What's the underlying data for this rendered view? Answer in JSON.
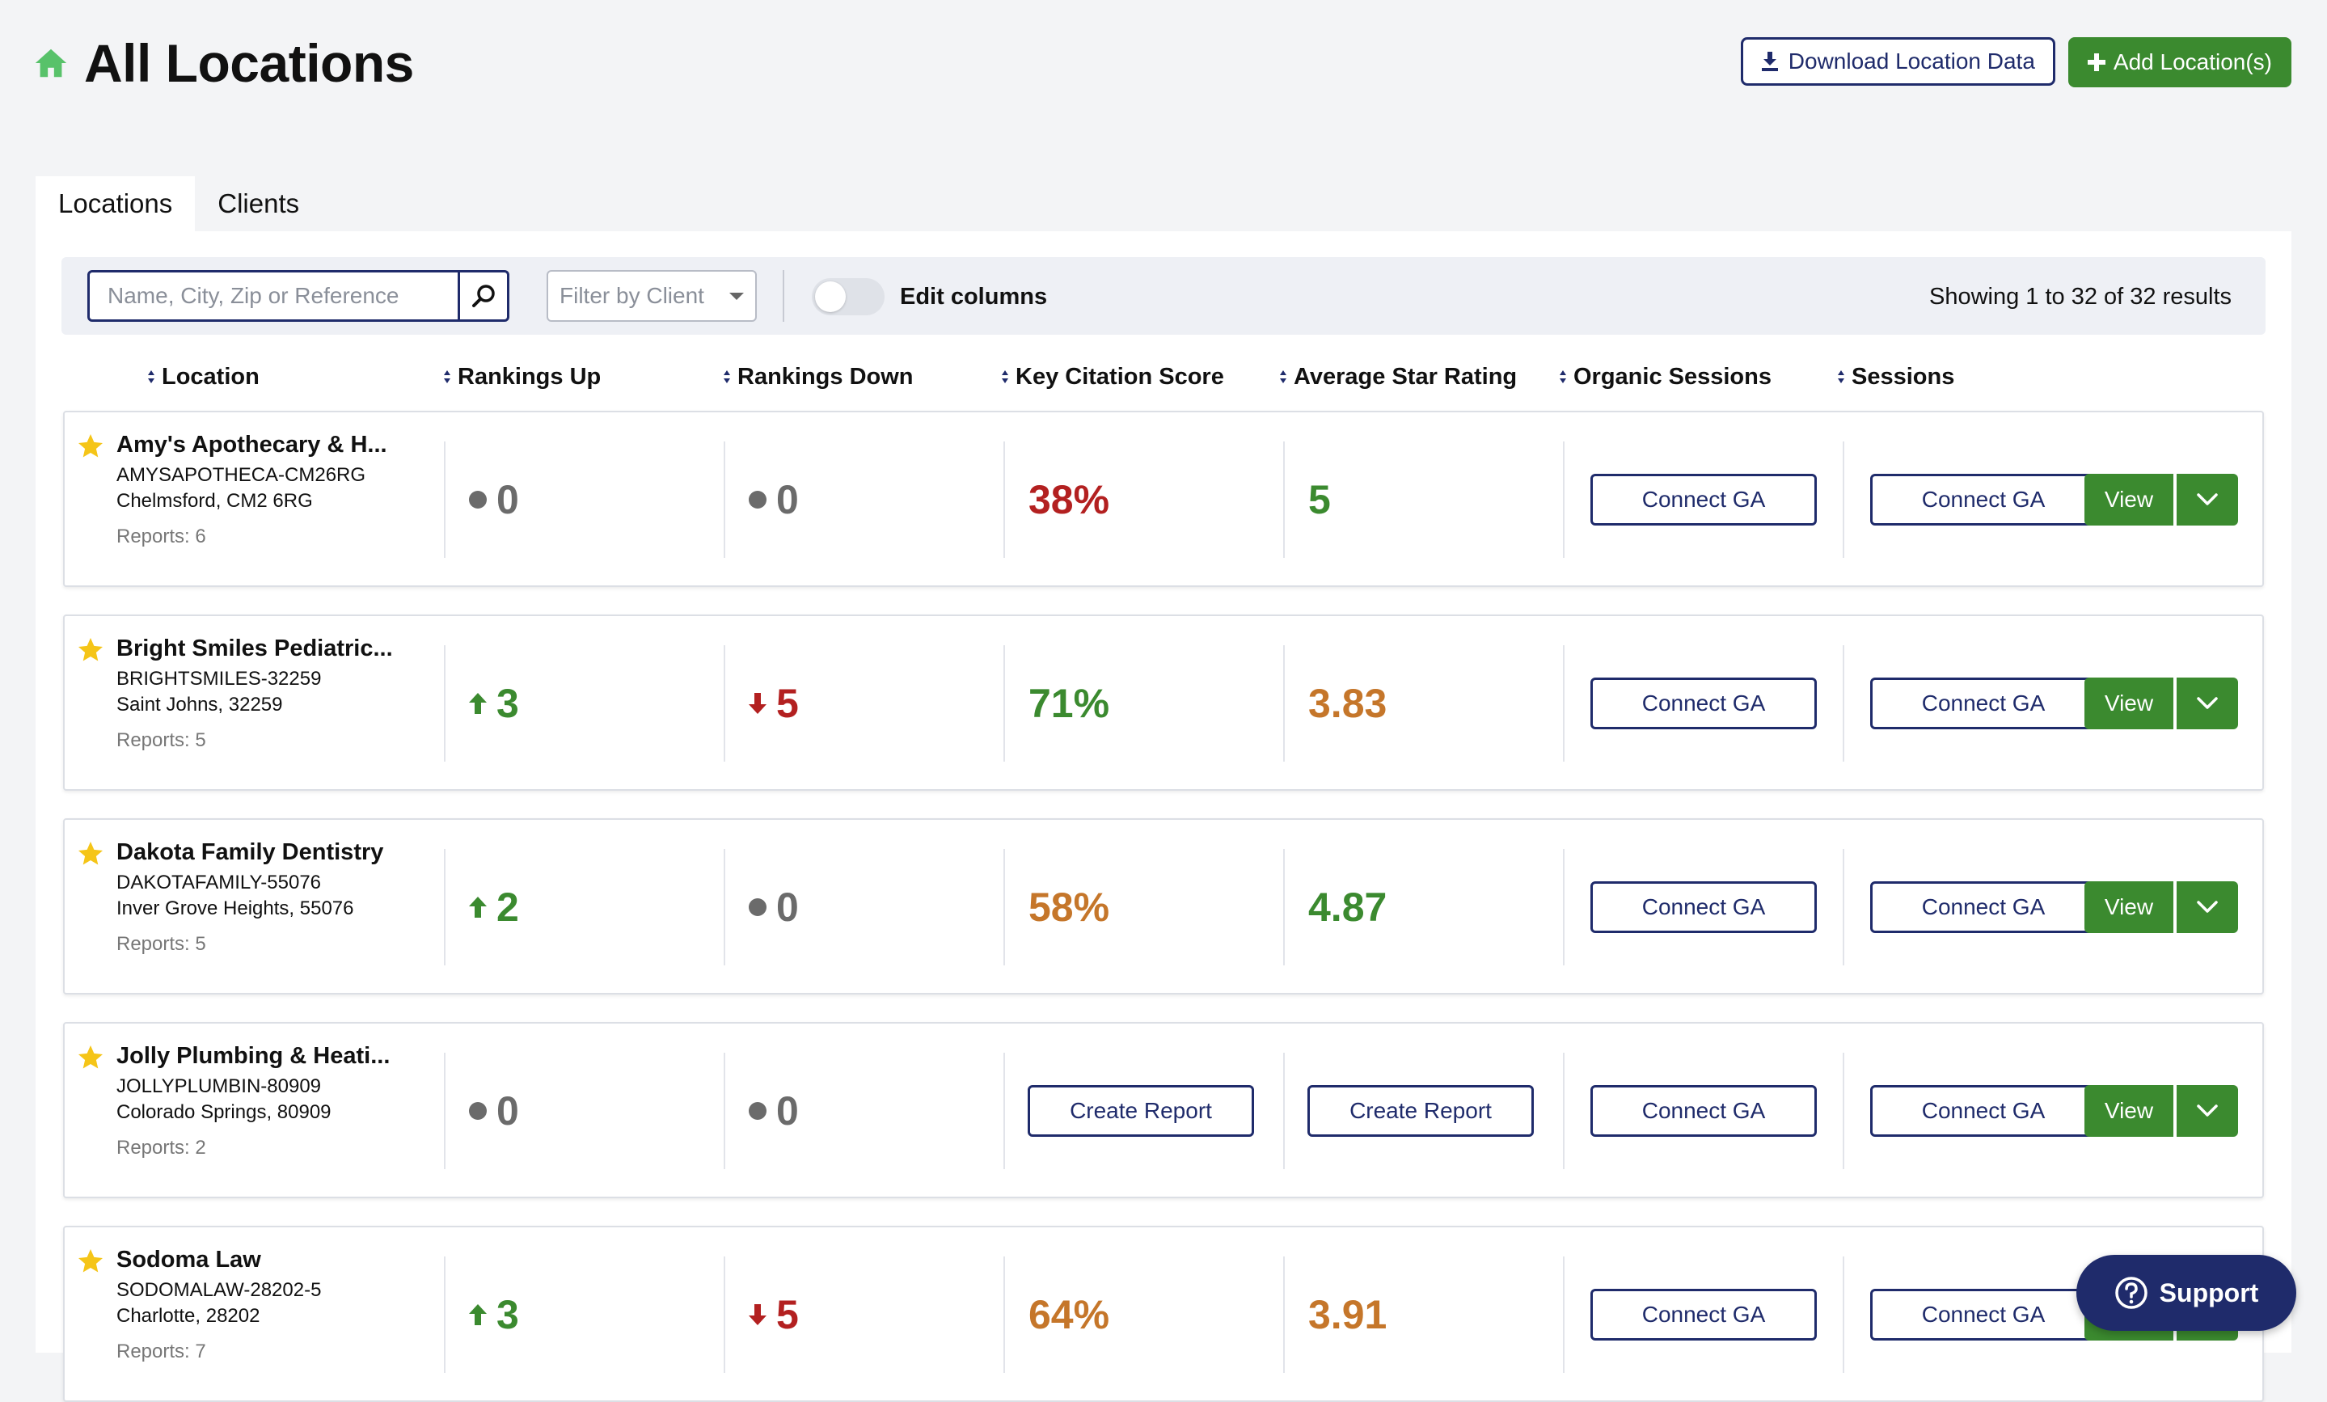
{
  "header": {
    "title": "All Locations",
    "download_label": "Download Location Data",
    "add_label": "Add Location(s)"
  },
  "tabs": [
    {
      "label": "Locations",
      "active": true
    },
    {
      "label": "Clients",
      "active": false
    }
  ],
  "toolbar": {
    "search_placeholder": "Name, City, Zip or Reference",
    "search_value": "",
    "filter_placeholder": "Filter by Client",
    "edit_columns_label": "Edit columns",
    "edit_columns_on": false,
    "results_text": "Showing 1 to 32 of 32 results"
  },
  "columns": [
    "Location",
    "Rankings Up",
    "Rankings Down",
    "Key Citation Score",
    "Average Star Rating",
    "Organic Sessions",
    "Sessions"
  ],
  "rows": [
    {
      "name": "Amy's Apothecary & H...",
      "ref": "AMYSAPOTHECA-CM26RG",
      "address": "Chelmsford, CM2 6RG",
      "reports": "Reports: 6",
      "rank_up": {
        "value": "0",
        "indicator": "neutral"
      },
      "rank_down": {
        "value": "0",
        "indicator": "neutral"
      },
      "citation": {
        "text": "38%",
        "status": "bad"
      },
      "rating": {
        "text": "5",
        "status": "good"
      },
      "organic_action": "Connect GA",
      "sessions_action": "Connect GA",
      "view_label": "View"
    },
    {
      "name": "Bright Smiles Pediatric...",
      "ref": "BRIGHTSMILES-32259",
      "address": "Saint Johns, 32259",
      "reports": "Reports: 5",
      "rank_up": {
        "value": "3",
        "indicator": "up"
      },
      "rank_down": {
        "value": "5",
        "indicator": "down"
      },
      "citation": {
        "text": "71%",
        "status": "good"
      },
      "rating": {
        "text": "3.83",
        "status": "warn"
      },
      "organic_action": "Connect GA",
      "sessions_action": "Connect GA",
      "view_label": "View"
    },
    {
      "name": "Dakota Family Dentistry",
      "ref": "DAKOTAFAMILY-55076",
      "address": "Inver Grove Heights, 55076",
      "reports": "Reports: 5",
      "rank_up": {
        "value": "2",
        "indicator": "up"
      },
      "rank_down": {
        "value": "0",
        "indicator": "neutral"
      },
      "citation": {
        "text": "58%",
        "status": "warn"
      },
      "rating": {
        "text": "4.87",
        "status": "good"
      },
      "organic_action": "Connect GA",
      "sessions_action": "Connect GA",
      "view_label": "View"
    },
    {
      "name": "Jolly Plumbing & Heati...",
      "ref": "JOLLYPLUMBIN-80909",
      "address": "Colorado Springs, 80909",
      "reports": "Reports: 2",
      "rank_up": {
        "value": "0",
        "indicator": "neutral"
      },
      "rank_down": {
        "value": "0",
        "indicator": "neutral"
      },
      "citation": {
        "text": "Create Report",
        "status": "action"
      },
      "rating": {
        "text": "Create Report",
        "status": "action"
      },
      "organic_action": "Connect GA",
      "sessions_action": "Connect GA",
      "view_label": "View"
    },
    {
      "name": "Sodoma Law",
      "ref": "SODOMALAW-28202-5",
      "address": "Charlotte, 28202",
      "reports": "Reports: 7",
      "rank_up": {
        "value": "3",
        "indicator": "up"
      },
      "rank_down": {
        "value": "5",
        "indicator": "down"
      },
      "citation": {
        "text": "64%",
        "status": "warn"
      },
      "rating": {
        "text": "3.91",
        "status": "warn"
      },
      "organic_action": "Connect GA",
      "sessions_action": "Connect GA",
      "view_label": "View"
    }
  ],
  "support": {
    "label": "Support"
  },
  "icons": {
    "home": "home-icon",
    "download": "download-icon",
    "plus": "plus-icon",
    "search": "search-icon",
    "sort": "sort-icon",
    "star": "star-icon",
    "arrow_up": "arrow-up-icon",
    "arrow_down": "arrow-down-icon",
    "neutral": "neutral-dot-icon",
    "caret": "chevron-down-icon",
    "help": "question-circle-icon"
  },
  "colors": {
    "brand_green": "#3b8a2f",
    "navy": "#1f2b6b",
    "good": "#3b8a2f",
    "warn": "#c5762a",
    "bad": "#b32020",
    "neutral": "#6b6b6b",
    "star": "#f5c518",
    "home_icon": "#58c26a"
  }
}
